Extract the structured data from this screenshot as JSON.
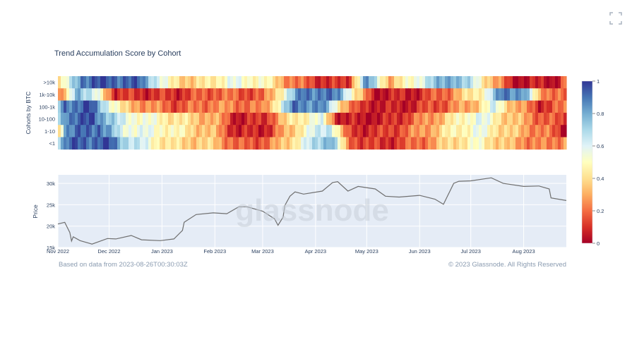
{
  "title": "Trend Accumulation Score by Cohort",
  "watermark": "glassnode",
  "footer": {
    "left": "Based on data from 2023-08-26T00:30:03Z",
    "right": "© 2023 Glassnode. All Rights Reserved"
  },
  "chart_data": [
    {
      "type": "heatmap",
      "ylabel": "Cohorts by BTC",
      "cohorts": [
        ">10k",
        "1k-10k",
        "100-1k",
        "10-100",
        "1-10",
        "<1"
      ],
      "x_start": "2022-11-01",
      "x_end": "2023-08-26",
      "colorscale": {
        "min": 0,
        "max": 1,
        "ticks": [
          "1",
          "0.8",
          "0.6",
          "0.4",
          "0.2",
          "0"
        ],
        "stops": [
          "#a50026",
          "#d73027",
          "#f46d43",
          "#fdae61",
          "#fee090",
          "#ffffbf",
          "#e0f3f8",
          "#abd9e9",
          "#74add1",
          "#4575b4",
          "#313695"
        ]
      },
      "segments": [
        [
          [
            "2022-11-01",
            0.35
          ],
          [
            "2022-11-08",
            0.6
          ],
          [
            "2022-11-15",
            0.92
          ],
          [
            "2022-12-01",
            0.95
          ],
          [
            "2022-12-20",
            0.9
          ],
          [
            "2023-01-05",
            0.45
          ],
          [
            "2023-01-20",
            0.35
          ],
          [
            "2023-02-10",
            0.55
          ],
          [
            "2023-03-01",
            0.5
          ],
          [
            "2023-03-20",
            0.2
          ],
          [
            "2023-04-10",
            0.08
          ],
          [
            "2023-04-20",
            0.1
          ],
          [
            "2023-05-01",
            0.85
          ],
          [
            "2023-05-15",
            0.3
          ],
          [
            "2023-06-01",
            0.6
          ],
          [
            "2023-06-20",
            0.85
          ],
          [
            "2023-07-05",
            0.55
          ],
          [
            "2023-07-25",
            0.05
          ],
          [
            "2023-08-20",
            0.05
          ],
          [
            "2023-08-26",
            0.2
          ]
        ],
        [
          [
            "2022-11-01",
            0.15
          ],
          [
            "2022-11-06",
            0.35
          ],
          [
            "2022-11-12",
            0.85
          ],
          [
            "2022-11-25",
            0.5
          ],
          [
            "2022-12-05",
            0.1
          ],
          [
            "2023-01-10",
            0.1
          ],
          [
            "2023-02-01",
            0.2
          ],
          [
            "2023-03-01",
            0.15
          ],
          [
            "2023-03-15",
            0.6
          ],
          [
            "2023-03-25",
            0.92
          ],
          [
            "2023-04-15",
            0.85
          ],
          [
            "2023-04-25",
            0.4
          ],
          [
            "2023-05-05",
            0.05
          ],
          [
            "2023-06-01",
            0.08
          ],
          [
            "2023-06-20",
            0.25
          ],
          [
            "2023-07-10",
            0.55
          ],
          [
            "2023-07-20",
            0.9
          ],
          [
            "2023-08-01",
            0.85
          ],
          [
            "2023-08-10",
            0.3
          ],
          [
            "2023-08-26",
            0.15
          ]
        ],
        [
          [
            "2022-11-01",
            0.7
          ],
          [
            "2022-11-05",
            0.9
          ],
          [
            "2022-11-20",
            0.95
          ],
          [
            "2022-12-10",
            0.35
          ],
          [
            "2023-01-10",
            0.15
          ],
          [
            "2023-02-01",
            0.25
          ],
          [
            "2023-03-01",
            0.2
          ],
          [
            "2023-03-20",
            0.9
          ],
          [
            "2023-04-05",
            0.85
          ],
          [
            "2023-04-15",
            0.45
          ],
          [
            "2023-04-25",
            0.1
          ],
          [
            "2023-05-20",
            0.05
          ],
          [
            "2023-06-10",
            0.15
          ],
          [
            "2023-07-01",
            0.3
          ],
          [
            "2023-07-15",
            0.6
          ],
          [
            "2023-07-25",
            0.35
          ],
          [
            "2023-08-10",
            0.1
          ],
          [
            "2023-08-26",
            0.2
          ]
        ],
        [
          [
            "2022-11-01",
            0.6
          ],
          [
            "2022-11-05",
            0.9
          ],
          [
            "2022-11-22",
            0.95
          ],
          [
            "2022-12-08",
            0.6
          ],
          [
            "2023-01-05",
            0.45
          ],
          [
            "2023-02-01",
            0.3
          ],
          [
            "2023-02-15",
            0.05
          ],
          [
            "2023-03-01",
            0.1
          ],
          [
            "2023-03-20",
            0.45
          ],
          [
            "2023-04-05",
            0.55
          ],
          [
            "2023-04-15",
            0.05
          ],
          [
            "2023-05-10",
            0.05
          ],
          [
            "2023-05-25",
            0.15
          ],
          [
            "2023-06-15",
            0.35
          ],
          [
            "2023-07-05",
            0.6
          ],
          [
            "2023-07-20",
            0.4
          ],
          [
            "2023-08-10",
            0.2
          ],
          [
            "2023-08-26",
            0.1
          ]
        ],
        [
          [
            "2022-11-01",
            0.3
          ],
          [
            "2022-11-05",
            0.85
          ],
          [
            "2022-11-25",
            0.95
          ],
          [
            "2022-12-08",
            0.6
          ],
          [
            "2023-01-05",
            0.5
          ],
          [
            "2023-02-01",
            0.3
          ],
          [
            "2023-02-15",
            0.05
          ],
          [
            "2023-03-05",
            0.1
          ],
          [
            "2023-03-25",
            0.5
          ],
          [
            "2023-04-10",
            0.7
          ],
          [
            "2023-04-20",
            0.1
          ],
          [
            "2023-05-10",
            0.1
          ],
          [
            "2023-06-01",
            0.25
          ],
          [
            "2023-06-20",
            0.45
          ],
          [
            "2023-07-05",
            0.55
          ],
          [
            "2023-07-25",
            0.35
          ],
          [
            "2023-08-15",
            0.2
          ],
          [
            "2023-08-26",
            0.05
          ]
        ],
        [
          [
            "2022-11-01",
            0.75
          ],
          [
            "2022-11-08",
            0.92
          ],
          [
            "2022-12-01",
            0.95
          ],
          [
            "2022-12-12",
            0.7
          ],
          [
            "2023-01-05",
            0.4
          ],
          [
            "2023-02-01",
            0.35
          ],
          [
            "2023-02-15",
            0.15
          ],
          [
            "2023-03-05",
            0.2
          ],
          [
            "2023-03-25",
            0.55
          ],
          [
            "2023-04-10",
            0.85
          ],
          [
            "2023-04-20",
            0.2
          ],
          [
            "2023-05-10",
            0.08
          ],
          [
            "2023-06-01",
            0.2
          ],
          [
            "2023-06-20",
            0.4
          ],
          [
            "2023-07-05",
            0.5
          ],
          [
            "2023-07-25",
            0.3
          ],
          [
            "2023-08-15",
            0.2
          ],
          [
            "2023-08-26",
            0.3
          ]
        ]
      ]
    },
    {
      "type": "line",
      "ylabel": "Price",
      "x_ticks": [
        "Nov 2022",
        "Dec 2022",
        "Jan 2023",
        "Feb 2023",
        "Mar 2023",
        "Apr 2023",
        "May 2023",
        "Jun 2023",
        "Jul 2023",
        "Aug 2023"
      ],
      "x_tick_dates": [
        "2022-11-01",
        "2022-12-01",
        "2023-01-01",
        "2023-02-01",
        "2023-03-01",
        "2023-04-01",
        "2023-05-01",
        "2023-06-01",
        "2023-07-01",
        "2023-08-01"
      ],
      "y_ticks": [
        "30k",
        "25k",
        "20k",
        "15k"
      ],
      "y_tick_values": [
        30000,
        25000,
        20000,
        15000
      ],
      "ylim": [
        15000,
        32000
      ],
      "series": [
        {
          "x": [
            "2022-11-01",
            "2022-11-05",
            "2022-11-08",
            "2022-11-09",
            "2022-11-10",
            "2022-11-14",
            "2022-11-21",
            "2022-11-30",
            "2022-12-05",
            "2022-12-14",
            "2022-12-20",
            "2022-12-31",
            "2023-01-08",
            "2023-01-13",
            "2023-01-14",
            "2023-01-21",
            "2023-01-31",
            "2023-02-08",
            "2023-02-15",
            "2023-02-20",
            "2023-03-01",
            "2023-03-08",
            "2023-03-10",
            "2023-03-13",
            "2023-03-14",
            "2023-03-17",
            "2023-03-20",
            "2023-03-25",
            "2023-04-05",
            "2023-04-11",
            "2023-04-14",
            "2023-04-20",
            "2023-04-26",
            "2023-05-06",
            "2023-05-12",
            "2023-05-20",
            "2023-06-01",
            "2023-06-10",
            "2023-06-15",
            "2023-06-21",
            "2023-06-24",
            "2023-07-01",
            "2023-07-13",
            "2023-07-20",
            "2023-08-01",
            "2023-08-10",
            "2023-08-16",
            "2023-08-17",
            "2023-08-26"
          ],
          "y": [
            20500,
            20900,
            18500,
            16500,
            17500,
            16600,
            15800,
            17100,
            17000,
            17800,
            16800,
            16600,
            17000,
            19000,
            20900,
            22700,
            23100,
            22900,
            24500,
            24500,
            23500,
            21700,
            20200,
            22100,
            24800,
            27000,
            28000,
            27500,
            28200,
            30200,
            30400,
            28200,
            29300,
            28700,
            27000,
            26800,
            27200,
            26300,
            25100,
            30000,
            30500,
            30600,
            31300,
            30000,
            29300,
            29400,
            28700,
            26600,
            26000
          ]
        }
      ]
    }
  ]
}
